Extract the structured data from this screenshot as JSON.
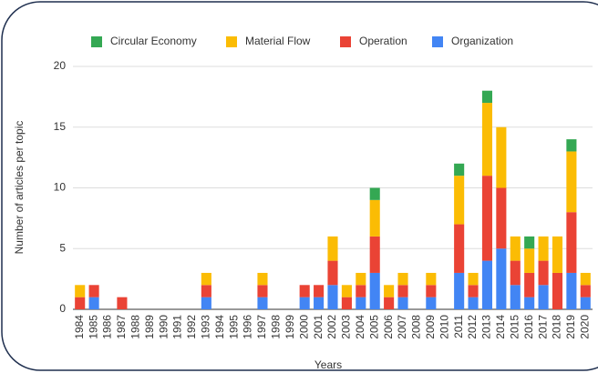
{
  "chart_data": {
    "type": "stacked_bar",
    "xlabel": "Years",
    "ylabel": "Number of articles per topic",
    "categories": [
      "1984",
      "1985",
      "1986",
      "1987",
      "1988",
      "1989",
      "1990",
      "1991",
      "1992",
      "1993",
      "1994",
      "1995",
      "1996",
      "1997",
      "1998",
      "1999",
      "2000",
      "2001",
      "2002",
      "2003",
      "2004",
      "2005",
      "2006",
      "2007",
      "2008",
      "2009",
      "2010",
      "2011",
      "2012",
      "2013",
      "2014",
      "2015",
      "2016",
      "2017",
      "2018",
      "2019",
      "2020"
    ],
    "series": [
      {
        "name": "Organization",
        "color": "#4285f4",
        "values": [
          0,
          1,
          0,
          0,
          0,
          0,
          0,
          0,
          0,
          1,
          0,
          0,
          0,
          1,
          0,
          0,
          1,
          1,
          2,
          0,
          1,
          3,
          0,
          1,
          0,
          1,
          0,
          3,
          1,
          4,
          5,
          2,
          1,
          2,
          0,
          3,
          1
        ]
      },
      {
        "name": "Operation",
        "color": "#ea4335",
        "values": [
          1,
          1,
          0,
          1,
          0,
          0,
          0,
          0,
          0,
          1,
          0,
          0,
          0,
          1,
          0,
          0,
          1,
          1,
          2,
          1,
          1,
          3,
          1,
          1,
          0,
          1,
          0,
          4,
          1,
          7,
          5,
          2,
          2,
          2,
          3,
          5,
          1
        ]
      },
      {
        "name": "Material Flow",
        "color": "#fbbc04",
        "values": [
          1,
          0,
          0,
          0,
          0,
          0,
          0,
          0,
          0,
          1,
          0,
          0,
          0,
          1,
          0,
          0,
          0,
          0,
          2,
          1,
          1,
          3,
          1,
          1,
          0,
          1,
          0,
          4,
          1,
          6,
          5,
          2,
          2,
          2,
          3,
          5,
          1
        ]
      },
      {
        "name": "Circular Economy",
        "color": "#34a853",
        "values": [
          0,
          0,
          0,
          0,
          0,
          0,
          0,
          0,
          0,
          0,
          0,
          0,
          0,
          0,
          0,
          0,
          0,
          0,
          0,
          0,
          0,
          1,
          0,
          0,
          0,
          0,
          0,
          1,
          0,
          1,
          0,
          0,
          1,
          0,
          0,
          1,
          0
        ]
      }
    ],
    "ylim": [
      0,
      20
    ],
    "yticks": [
      0,
      5,
      10,
      15,
      20
    ],
    "grid": true,
    "legend": "top"
  }
}
